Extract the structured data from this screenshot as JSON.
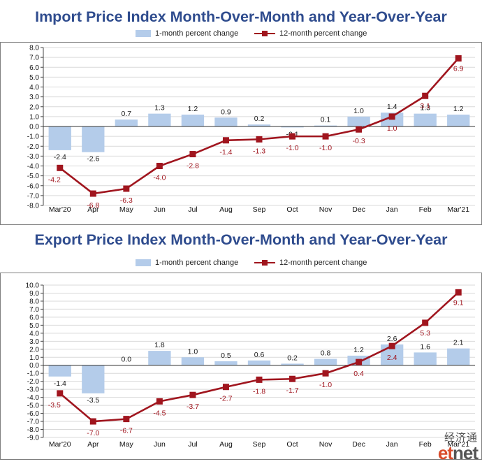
{
  "legend": {
    "bar_label": "1-month percent change",
    "line_label": "12-month percent change"
  },
  "colors": {
    "title": "#2F4C8E",
    "bar": "#B4CCEA",
    "line": "#A0151E",
    "value_label": "#A0151E",
    "bar_label": "#1a1a1a",
    "grid": "#d9d9d9"
  },
  "chart_data": [
    {
      "type": "bar+line",
      "title": "Import Price Index Month-Over-Month and Year-Over-Year",
      "categories": [
        "Mar'20",
        "Apr",
        "May",
        "Jun",
        "Jul",
        "Aug",
        "Sep",
        "Oct",
        "Nov",
        "Dec",
        "Jan",
        "Feb",
        "Mar'21"
      ],
      "series": [
        {
          "name": "1-month percent change",
          "kind": "bar",
          "values": [
            -2.4,
            -2.6,
            0.7,
            1.3,
            1.2,
            0.9,
            0.2,
            -0.1,
            0.1,
            1.0,
            1.4,
            1.3,
            1.2
          ]
        },
        {
          "name": "12-month percent change",
          "kind": "line",
          "values": [
            -4.2,
            -6.8,
            -6.3,
            -4.0,
            -2.8,
            -1.4,
            -1.3,
            -1.0,
            -1.0,
            -0.3,
            1.0,
            3.1,
            6.9
          ]
        }
      ],
      "ylim": [
        -8.0,
        8.0
      ],
      "ystep": 1.0,
      "grid": true,
      "legend_position": "top"
    },
    {
      "type": "bar+line",
      "title": "Export Price Index Month-Over-Month and Year-Over-Year",
      "categories": [
        "Mar'20",
        "Apr",
        "May",
        "Jun",
        "Jul",
        "Aug",
        "Sep",
        "Oct",
        "Nov",
        "Dec",
        "Jan",
        "Feb",
        "Mar'21"
      ],
      "series": [
        {
          "name": "1-month percent change",
          "kind": "bar",
          "values": [
            -1.4,
            -3.5,
            0.0,
            1.8,
            1.0,
            0.5,
            0.6,
            0.2,
            0.8,
            1.2,
            2.6,
            1.6,
            2.1
          ]
        },
        {
          "name": "12-month percent change",
          "kind": "line",
          "values": [
            -3.5,
            -7.0,
            -6.7,
            -4.5,
            -3.7,
            -2.7,
            -1.8,
            -1.7,
            -1.0,
            0.4,
            2.4,
            5.3,
            9.1
          ]
        }
      ],
      "ylim": [
        -9.0,
        10.0
      ],
      "ystep": 1.0,
      "grid": true,
      "legend_position": "top"
    }
  ],
  "watermark": {
    "chinese": "经济通",
    "latin_a": "et",
    "latin_b": "net"
  }
}
